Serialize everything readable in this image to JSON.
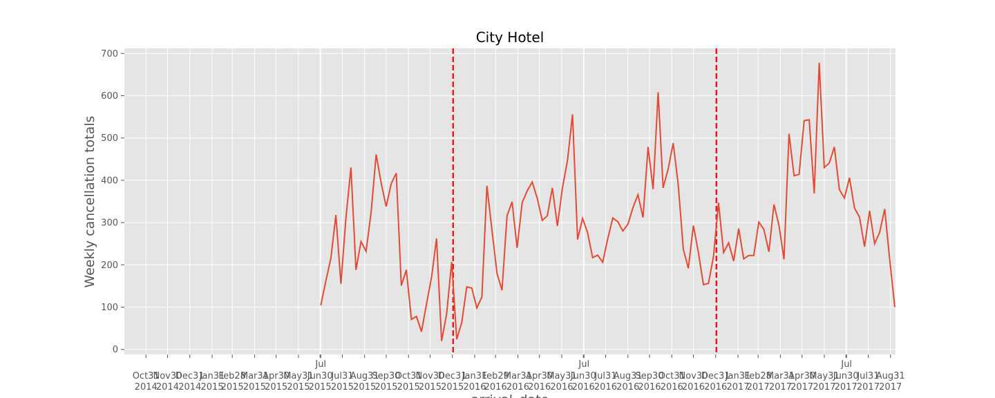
{
  "chart_data": {
    "type": "line",
    "title": "City Hotel",
    "xlabel": "arrival_date",
    "ylabel": "Weekly cancellation totals",
    "ylim": [
      -12,
      712
    ],
    "xlim": [
      "2014-10-01",
      "2017-09-07"
    ],
    "grid": true,
    "yticks": [
      0,
      100,
      200,
      300,
      400,
      500,
      600,
      700
    ],
    "xticks": [
      {
        "date": "2014-10-31",
        "label": [
          "Oct31",
          "2014"
        ]
      },
      {
        "date": "2014-11-30",
        "label": [
          "Nov30",
          "2014"
        ]
      },
      {
        "date": "2014-12-31",
        "label": [
          "Dec31",
          "2014"
        ]
      },
      {
        "date": "2015-01-31",
        "label": [
          "Jan31",
          "2015"
        ]
      },
      {
        "date": "2015-02-28",
        "label": [
          "Feb28",
          "2015"
        ]
      },
      {
        "date": "2015-03-31",
        "label": [
          "Mar31",
          "2015"
        ]
      },
      {
        "date": "2015-04-30",
        "label": [
          "Apr30",
          "2015"
        ]
      },
      {
        "date": "2015-05-31",
        "label": [
          "May31",
          "2015"
        ]
      },
      {
        "date": "2015-06-30",
        "label": [
          "Jun30",
          "2015"
        ]
      },
      {
        "date": "2015-07-01",
        "label": [
          "Jul"
        ]
      },
      {
        "date": "2015-07-31",
        "label": [
          "Jul31",
          "2015"
        ]
      },
      {
        "date": "2015-08-31",
        "label": [
          "Aug31",
          "2015"
        ]
      },
      {
        "date": "2015-09-30",
        "label": [
          "Sep30",
          "2015"
        ]
      },
      {
        "date": "2015-10-31",
        "label": [
          "Oct31",
          "2015"
        ]
      },
      {
        "date": "2015-11-30",
        "label": [
          "Nov30",
          "2015"
        ]
      },
      {
        "date": "2015-12-31",
        "label": [
          "Dec31",
          "2015"
        ]
      },
      {
        "date": "2016-01-31",
        "label": [
          "Jan31",
          "2016"
        ]
      },
      {
        "date": "2016-02-29",
        "label": [
          "Feb29",
          "2016"
        ]
      },
      {
        "date": "2016-03-31",
        "label": [
          "Mar31",
          "2016"
        ]
      },
      {
        "date": "2016-04-30",
        "label": [
          "Apr30",
          "2016"
        ]
      },
      {
        "date": "2016-05-31",
        "label": [
          "May31",
          "2016"
        ]
      },
      {
        "date": "2016-06-30",
        "label": [
          "Jun30",
          "2016"
        ]
      },
      {
        "date": "2016-07-01",
        "label": [
          "Jul"
        ]
      },
      {
        "date": "2016-07-31",
        "label": [
          "Jul31",
          "2016"
        ]
      },
      {
        "date": "2016-08-31",
        "label": [
          "Aug31",
          "2016"
        ]
      },
      {
        "date": "2016-09-30",
        "label": [
          "Sep30",
          "2016"
        ]
      },
      {
        "date": "2016-10-31",
        "label": [
          "Oct31",
          "2016"
        ]
      },
      {
        "date": "2016-11-30",
        "label": [
          "Nov30",
          "2016"
        ]
      },
      {
        "date": "2016-12-31",
        "label": [
          "Dec31",
          "2016"
        ]
      },
      {
        "date": "2017-01-31",
        "label": [
          "Jan31",
          "2017"
        ]
      },
      {
        "date": "2017-02-28",
        "label": [
          "Feb28",
          "2017"
        ]
      },
      {
        "date": "2017-03-31",
        "label": [
          "Mar31",
          "2017"
        ]
      },
      {
        "date": "2017-04-30",
        "label": [
          "Apr30",
          "2017"
        ]
      },
      {
        "date": "2017-05-31",
        "label": [
          "May31",
          "2017"
        ]
      },
      {
        "date": "2017-06-30",
        "label": [
          "Jun30",
          "2017"
        ]
      },
      {
        "date": "2017-07-01",
        "label": [
          "Jul"
        ]
      },
      {
        "date": "2017-07-31",
        "label": [
          "Jul31",
          "2017"
        ]
      },
      {
        "date": "2017-08-31",
        "label": [
          "Aug31",
          "2017"
        ]
      }
    ],
    "vlines": [
      "2016-01-01",
      "2017-01-01"
    ],
    "series": [
      {
        "values": [
          [
            "2015-07-01",
            104
          ],
          [
            "2015-07-08",
            161
          ],
          [
            "2015-07-15",
            215
          ],
          [
            "2015-07-22",
            318
          ],
          [
            "2015-07-29",
            155
          ],
          [
            "2015-08-05",
            310
          ],
          [
            "2015-08-12",
            430
          ],
          [
            "2015-08-19",
            188
          ],
          [
            "2015-08-26",
            255
          ],
          [
            "2015-09-02",
            232
          ],
          [
            "2015-09-09",
            324
          ],
          [
            "2015-09-16",
            461
          ],
          [
            "2015-09-23",
            393
          ],
          [
            "2015-09-30",
            338
          ],
          [
            "2015-10-07",
            392
          ],
          [
            "2015-10-14",
            417
          ],
          [
            "2015-10-21",
            151
          ],
          [
            "2015-10-28",
            188
          ],
          [
            "2015-11-04",
            71
          ],
          [
            "2015-11-11",
            78
          ],
          [
            "2015-11-18",
            42
          ],
          [
            "2015-11-25",
            107
          ],
          [
            "2015-12-02",
            170
          ],
          [
            "2015-12-09",
            262
          ],
          [
            "2015-12-16",
            20
          ],
          [
            "2015-12-23",
            84
          ],
          [
            "2015-12-30",
            207
          ],
          [
            "2016-01-06",
            24
          ],
          [
            "2016-01-13",
            64
          ],
          [
            "2016-01-20",
            148
          ],
          [
            "2016-01-27",
            145
          ],
          [
            "2016-02-03",
            98
          ],
          [
            "2016-02-10",
            124
          ],
          [
            "2016-02-17",
            387
          ],
          [
            "2016-02-24",
            282
          ],
          [
            "2016-03-02",
            180
          ],
          [
            "2016-03-09",
            140
          ],
          [
            "2016-03-16",
            316
          ],
          [
            "2016-03-23",
            349
          ],
          [
            "2016-03-30",
            240
          ],
          [
            "2016-04-06",
            347
          ],
          [
            "2016-04-13",
            375
          ],
          [
            "2016-04-20",
            396
          ],
          [
            "2016-04-27",
            357
          ],
          [
            "2016-05-04",
            305
          ],
          [
            "2016-05-11",
            316
          ],
          [
            "2016-05-18",
            382
          ],
          [
            "2016-05-25",
            292
          ],
          [
            "2016-06-01",
            382
          ],
          [
            "2016-06-08",
            447
          ],
          [
            "2016-06-15",
            556
          ],
          [
            "2016-06-22",
            260
          ],
          [
            "2016-06-29",
            310
          ],
          [
            "2016-07-06",
            276
          ],
          [
            "2016-07-13",
            217
          ],
          [
            "2016-07-20",
            223
          ],
          [
            "2016-07-27",
            206
          ],
          [
            "2016-08-03",
            262
          ],
          [
            "2016-08-10",
            311
          ],
          [
            "2016-08-17",
            302
          ],
          [
            "2016-08-24",
            280
          ],
          [
            "2016-08-31",
            296
          ],
          [
            "2016-09-07",
            335
          ],
          [
            "2016-09-14",
            366
          ],
          [
            "2016-09-21",
            312
          ],
          [
            "2016-09-28",
            479
          ],
          [
            "2016-10-05",
            379
          ],
          [
            "2016-10-12",
            608
          ],
          [
            "2016-10-19",
            382
          ],
          [
            "2016-10-26",
            427
          ],
          [
            "2016-11-02",
            488
          ],
          [
            "2016-11-09",
            389
          ],
          [
            "2016-11-16",
            237
          ],
          [
            "2016-11-23",
            192
          ],
          [
            "2016-11-30",
            293
          ],
          [
            "2016-12-07",
            229
          ],
          [
            "2016-12-14",
            153
          ],
          [
            "2016-12-21",
            156
          ],
          [
            "2016-12-28",
            220
          ],
          [
            "2017-01-04",
            347
          ],
          [
            "2017-01-11",
            229
          ],
          [
            "2017-01-18",
            252
          ],
          [
            "2017-01-25",
            209
          ],
          [
            "2017-02-01",
            286
          ],
          [
            "2017-02-08",
            214
          ],
          [
            "2017-02-15",
            222
          ],
          [
            "2017-02-22",
            222
          ],
          [
            "2017-03-01",
            301
          ],
          [
            "2017-03-08",
            284
          ],
          [
            "2017-03-15",
            231
          ],
          [
            "2017-03-22",
            343
          ],
          [
            "2017-03-29",
            293
          ],
          [
            "2017-04-05",
            213
          ],
          [
            "2017-04-12",
            510
          ],
          [
            "2017-04-19",
            411
          ],
          [
            "2017-04-26",
            414
          ],
          [
            "2017-05-03",
            541
          ],
          [
            "2017-05-10",
            543
          ],
          [
            "2017-05-17",
            369
          ],
          [
            "2017-05-24",
            678
          ],
          [
            "2017-05-31",
            430
          ],
          [
            "2017-06-07",
            441
          ],
          [
            "2017-06-14",
            479
          ],
          [
            "2017-06-21",
            378
          ],
          [
            "2017-06-28",
            358
          ],
          [
            "2017-07-05",
            406
          ],
          [
            "2017-07-12",
            334
          ],
          [
            "2017-07-19",
            313
          ],
          [
            "2017-07-26",
            243
          ],
          [
            "2017-08-02",
            328
          ],
          [
            "2017-08-09",
            250
          ],
          [
            "2017-08-16",
            277
          ],
          [
            "2017-08-23",
            332
          ],
          [
            "2017-08-30",
            211
          ],
          [
            "2017-09-06",
            100
          ]
        ]
      }
    ],
    "colors": {
      "background": "#e5e5e5",
      "grid": "#ffffff",
      "line": "#e24a33",
      "vline": "#e41a1c",
      "tick_text": "#555555",
      "tick_mark": "#555555"
    }
  }
}
